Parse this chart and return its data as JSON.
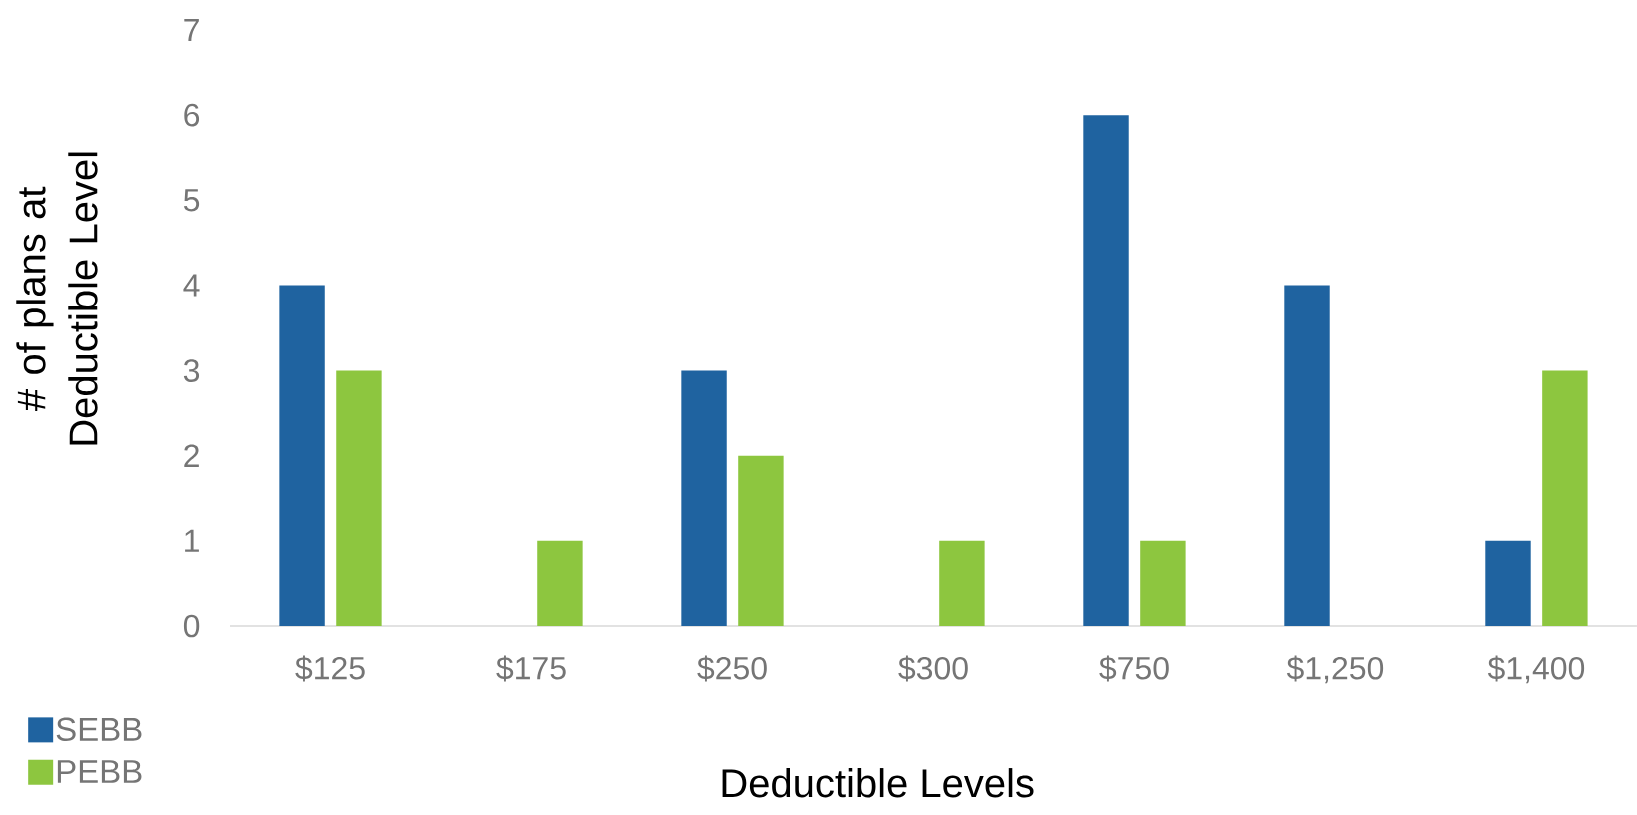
{
  "chart_data": {
    "type": "bar",
    "xlabel": "Deductible Levels",
    "ylabel": "# of plans at Deductible Level",
    "categories": [
      "$125",
      "$175",
      "$250",
      "$300",
      "$750",
      "$1,250",
      "$1,400"
    ],
    "series": [
      {
        "name": "SEBB",
        "color": "#1f63a0",
        "values": [
          4,
          null,
          3,
          null,
          6,
          4,
          1
        ]
      },
      {
        "name": "PEBB",
        "color": "#8dc63f",
        "values": [
          3,
          1,
          2,
          1,
          1,
          null,
          3
        ]
      }
    ],
    "ylim": [
      0,
      7
    ],
    "yticks": [
      0,
      1,
      2,
      3,
      4,
      5,
      6,
      7
    ],
    "legend": "bottom left"
  }
}
